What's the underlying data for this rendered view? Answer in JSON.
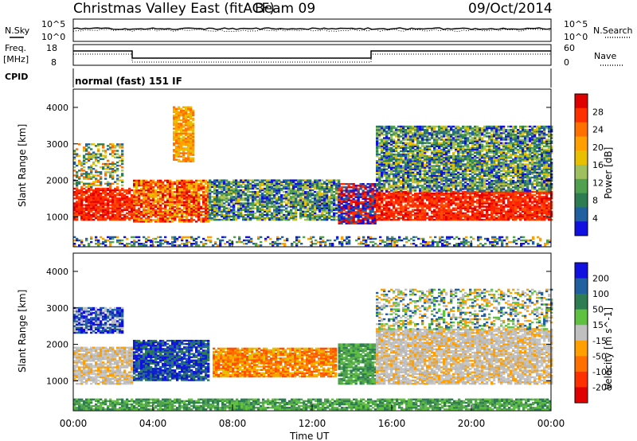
{
  "header": {
    "title": "Christmas Valley East (fitACF)",
    "beam": "Beam 09",
    "date": "09/Oct/2014"
  },
  "panels": {
    "nsky_label": "N.Sky",
    "nsearch_label": "N.Search",
    "freq_label": "Freq.",
    "freq_unit": "[MHz]",
    "nave_label": "Nave",
    "cpid_label": "CPID",
    "cpid_text": "normal (fast) 151 IF",
    "noise_left_ticks": [
      "10^5",
      "10^0"
    ],
    "noise_right_ticks": [
      "10^5",
      "10^0"
    ],
    "freq_ticks": [
      "18",
      "8"
    ],
    "nave_ticks": [
      "60",
      "0"
    ]
  },
  "chart_data": [
    {
      "type": "heatmap",
      "name": "power",
      "title": "",
      "xlabel": "",
      "ylabel": "Slant Range [km]",
      "xlim": [
        0,
        24
      ],
      "ylim": [
        180,
        4500
      ],
      "yticks": [
        "1000",
        "2000",
        "3000",
        "4000"
      ],
      "colorbar": {
        "label": "Power [dB]",
        "ticks": [
          "28",
          "24",
          "20",
          "16",
          "12",
          "8",
          "4"
        ],
        "colors": [
          "#e00000",
          "#ff3000",
          "#ff7000",
          "#ffa000",
          "#e8c000",
          "#a0c060",
          "#50a050",
          "#2e7d52",
          "#2060a0",
          "#1010e0"
        ]
      },
      "bands": [
        {
          "t0": 0.0,
          "t1": 3.0,
          "r0": 900,
          "r1": 1800,
          "level": "red"
        },
        {
          "t0": 0.0,
          "t1": 2.5,
          "r0": 1800,
          "r1": 3000,
          "level": "mixed"
        },
        {
          "t0": 3.0,
          "t1": 6.8,
          "r0": 850,
          "r1": 2000,
          "level": "red-yellow"
        },
        {
          "t0": 5.0,
          "t1": 6.0,
          "r0": 2500,
          "r1": 4000,
          "level": "orange"
        },
        {
          "t0": 6.8,
          "t1": 13.3,
          "r0": 900,
          "r1": 2000,
          "level": "green-blue"
        },
        {
          "t0": 13.3,
          "t1": 15.2,
          "r0": 800,
          "r1": 1900,
          "level": "red-blue"
        },
        {
          "t0": 15.2,
          "t1": 24.0,
          "r0": 900,
          "r1": 1700,
          "level": "red"
        },
        {
          "t0": 15.2,
          "t1": 24.0,
          "r0": 1700,
          "r1": 3500,
          "level": "green-blue"
        },
        {
          "t0": 0.0,
          "t1": 24.0,
          "r0": 200,
          "r1": 450,
          "level": "ground"
        }
      ]
    },
    {
      "type": "heatmap",
      "name": "velocity",
      "title": "",
      "xlabel": "Time UT",
      "ylabel": "Slant Range [km]",
      "xlim": [
        0,
        24
      ],
      "ylim": [
        180,
        4500
      ],
      "xticks": [
        "00:00",
        "04:00",
        "08:00",
        "12:00",
        "16:00",
        "20:00",
        "00:00"
      ],
      "yticks": [
        "1000",
        "2000",
        "3000",
        "4000"
      ],
      "colorbar": {
        "label": "Velocity [m s^-1]",
        "ticks": [
          "200",
          "100",
          "50",
          "15",
          "-15",
          "-50",
          "-100",
          "-200"
        ],
        "colors": [
          "#1010e0",
          "#2060a0",
          "#2e7d52",
          "#60c040",
          "#c0c0c0",
          "#ffa000",
          "#ff7000",
          "#ff3000",
          "#e00000"
        ]
      },
      "bands": [
        {
          "t0": 0.0,
          "t1": 3.0,
          "r0": 900,
          "r1": 1900,
          "level": "grey"
        },
        {
          "t0": 0.0,
          "t1": 2.5,
          "r0": 2300,
          "r1": 3000,
          "level": "blue-grey"
        },
        {
          "t0": 3.0,
          "t1": 6.8,
          "r0": 1000,
          "r1": 2100,
          "level": "blue"
        },
        {
          "t0": 7.0,
          "t1": 13.2,
          "r0": 1100,
          "r1": 1900,
          "level": "orange"
        },
        {
          "t0": 13.3,
          "t1": 15.2,
          "r0": 900,
          "r1": 2000,
          "level": "green"
        },
        {
          "t0": 15.2,
          "t1": 24.0,
          "r0": 900,
          "r1": 2400,
          "level": "grey"
        },
        {
          "t0": 15.2,
          "t1": 24.0,
          "r0": 2400,
          "r1": 3500,
          "level": "mixed"
        },
        {
          "t0": 0.0,
          "t1": 24.0,
          "r0": 200,
          "r1": 500,
          "level": "green"
        }
      ]
    }
  ],
  "colors": {
    "text": "#000000",
    "grid": "#000000",
    "background": "#ffffff"
  }
}
